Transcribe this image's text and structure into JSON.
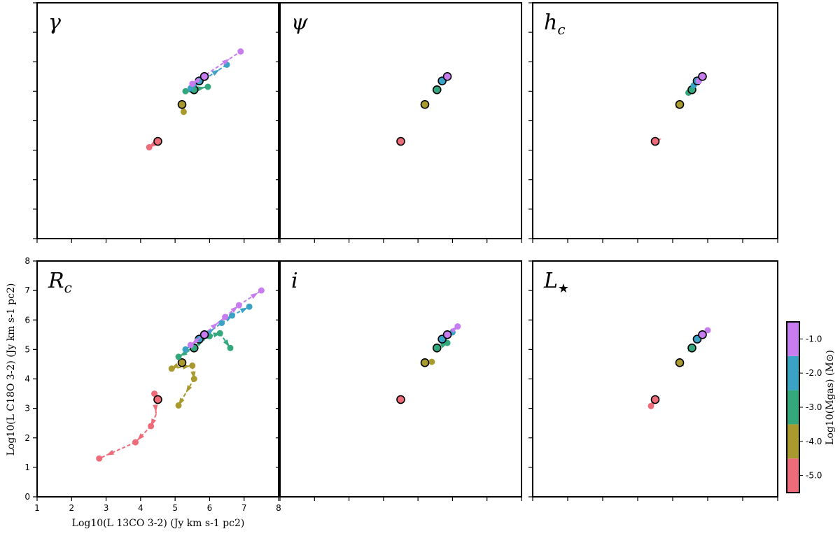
{
  "figure": {
    "shared_xlabel": "Log10(L 13CO 3-2) (Jy km s-1 pc2)",
    "shared_ylabel": "Log10(L C18O 3-2) (Jy km s-1 pc2)",
    "colorbar": {
      "label": "Log10(Mgas) (M⊙)",
      "levels": [
        -5.0,
        -4.0,
        -3.0,
        -2.0,
        -1.0
      ],
      "tick_labels": [
        "-5.0",
        "-4.0",
        "-3.0",
        "-2.0",
        "-1.0"
      ],
      "colors": [
        "#ee6b7a",
        "#a99a2e",
        "#33a87c",
        "#3aa2c5",
        "#c77cf0"
      ]
    }
  },
  "chart_data": [
    {
      "type": "scatter",
      "title": "γ",
      "xlim": [
        1,
        8
      ],
      "ylim": [
        0,
        8
      ],
      "xticks": [
        1,
        2,
        3,
        4,
        5,
        6,
        7,
        8
      ],
      "yticks": [
        0,
        1,
        2,
        3,
        4,
        5,
        6,
        7,
        8
      ],
      "series": [
        {
          "level": "-5.0",
          "base": [
            4.5,
            3.3
          ],
          "trail": [
            [
              4.25,
              3.1
            ]
          ],
          "points": [
            [
              4.25,
              3.1
            ]
          ]
        },
        {
          "level": "-4.0",
          "base": [
            5.2,
            4.55
          ],
          "trail": [
            [
              5.25,
              4.3
            ]
          ],
          "points": [
            [
              5.25,
              4.3
            ]
          ]
        },
        {
          "level": "-3.0",
          "base": [
            5.55,
            5.05
          ],
          "trail": [
            [
              5.3,
              5.0
            ],
            [
              5.95,
              5.15
            ]
          ],
          "points": [
            [
              5.3,
              5.0
            ],
            [
              5.95,
              5.15
            ]
          ]
        },
        {
          "level": "-2.0",
          "base": [
            5.7,
            5.35
          ],
          "trail": [
            [
              5.45,
              5.1
            ],
            [
              6.5,
              5.9
            ]
          ],
          "points": [
            [
              5.45,
              5.1
            ],
            [
              6.5,
              5.9
            ]
          ]
        },
        {
          "level": "-1.0",
          "base": [
            5.85,
            5.5
          ],
          "trail": [
            [
              5.5,
              5.25
            ],
            [
              6.9,
              6.35
            ]
          ],
          "points": [
            [
              5.5,
              5.25
            ],
            [
              6.9,
              6.35
            ]
          ]
        }
      ]
    },
    {
      "type": "scatter",
      "title": "ψ",
      "xlim": [
        1,
        8
      ],
      "ylim": [
        0,
        8
      ],
      "xticks": [
        1,
        2,
        3,
        4,
        5,
        6,
        7,
        8
      ],
      "yticks": [
        0,
        1,
        2,
        3,
        4,
        5,
        6,
        7,
        8
      ],
      "series": [
        {
          "level": "-5.0",
          "base": [
            4.5,
            3.3
          ],
          "trail": [],
          "points": []
        },
        {
          "level": "-4.0",
          "base": [
            5.2,
            4.55
          ],
          "trail": [],
          "points": []
        },
        {
          "level": "-3.0",
          "base": [
            5.55,
            5.05
          ],
          "trail": [],
          "points": []
        },
        {
          "level": "-2.0",
          "base": [
            5.7,
            5.35
          ],
          "trail": [],
          "points": []
        },
        {
          "level": "-1.0",
          "base": [
            5.85,
            5.5
          ],
          "trail": [],
          "points": []
        }
      ]
    },
    {
      "type": "scatter",
      "title": "hc",
      "xlim": [
        1,
        8
      ],
      "ylim": [
        0,
        8
      ],
      "xticks": [
        1,
        2,
        3,
        4,
        5,
        6,
        7,
        8
      ],
      "yticks": [
        0,
        1,
        2,
        3,
        4,
        5,
        6,
        7,
        8
      ],
      "series": [
        {
          "level": "-5.0",
          "base": [
            4.5,
            3.3
          ],
          "trail": [
            [
              4.6,
              3.35
            ]
          ],
          "points": []
        },
        {
          "level": "-4.0",
          "base": [
            5.2,
            4.55
          ],
          "trail": [
            [
              5.15,
              4.5
            ]
          ],
          "points": []
        },
        {
          "level": "-3.0",
          "base": [
            5.55,
            5.05
          ],
          "trail": [
            [
              5.45,
              4.95
            ]
          ],
          "points": [
            [
              5.45,
              4.95
            ]
          ]
        },
        {
          "level": "-2.0",
          "base": [
            5.7,
            5.35
          ],
          "trail": [
            [
              5.6,
              5.2
            ]
          ],
          "points": [
            [
              5.6,
              5.2
            ]
          ]
        },
        {
          "level": "-1.0",
          "base": [
            5.85,
            5.5
          ],
          "trail": [
            [
              5.75,
              5.35
            ]
          ],
          "points": [
            [
              5.75,
              5.35
            ]
          ]
        }
      ]
    },
    {
      "type": "scatter",
      "title": "Rc",
      "xlim": [
        1,
        8
      ],
      "ylim": [
        0,
        8
      ],
      "xticks": [
        1,
        2,
        3,
        4,
        5,
        6,
        7,
        8
      ],
      "yticks": [
        0,
        1,
        2,
        3,
        4,
        5,
        6,
        7,
        8
      ],
      "xtick_labels": [
        "1",
        "2",
        "3",
        "4",
        "5",
        "6",
        "7",
        "8"
      ],
      "ytick_labels": [
        "0",
        "1",
        "2",
        "3",
        "4",
        "5",
        "6",
        "7",
        "8"
      ],
      "series": [
        {
          "level": "-5.0",
          "base": [
            4.5,
            3.3
          ],
          "trail": [
            [
              4.4,
              3.5
            ],
            [
              4.45,
              2.8
            ],
            [
              4.3,
              2.4
            ],
            [
              3.85,
              1.85
            ],
            [
              2.8,
              1.3
            ]
          ],
          "points": [
            [
              4.4,
              3.5
            ],
            [
              4.3,
              2.4
            ],
            [
              3.85,
              1.85
            ],
            [
              2.8,
              1.3
            ]
          ]
        },
        {
          "level": "-4.0",
          "base": [
            5.2,
            4.55
          ],
          "trail": [
            [
              4.9,
              4.35
            ],
            [
              5.5,
              4.45
            ],
            [
              5.55,
              4.0
            ],
            [
              5.3,
              3.5
            ],
            [
              5.1,
              3.1
            ]
          ],
          "points": [
            [
              4.9,
              4.35
            ],
            [
              5.5,
              4.45
            ],
            [
              5.55,
              4.0
            ],
            [
              5.1,
              3.1
            ]
          ]
        },
        {
          "level": "-3.0",
          "base": [
            5.55,
            5.05
          ],
          "trail": [
            [
              5.1,
              4.75
            ],
            [
              6.0,
              5.45
            ],
            [
              6.3,
              5.55
            ],
            [
              6.6,
              5.05
            ]
          ],
          "points": [
            [
              5.1,
              4.75
            ],
            [
              6.0,
              5.45
            ],
            [
              6.3,
              5.55
            ],
            [
              6.6,
              5.05
            ]
          ]
        },
        {
          "level": "-2.0",
          "base": [
            5.7,
            5.35
          ],
          "trail": [
            [
              5.3,
              5.0
            ],
            [
              6.35,
              5.9
            ],
            [
              6.65,
              6.15
            ],
            [
              7.15,
              6.45
            ]
          ],
          "points": [
            [
              5.3,
              5.0
            ],
            [
              6.35,
              5.9
            ],
            [
              6.65,
              6.15
            ],
            [
              7.15,
              6.45
            ]
          ]
        },
        {
          "level": "-1.0",
          "base": [
            5.85,
            5.5
          ],
          "trail": [
            [
              5.45,
              5.15
            ],
            [
              6.45,
              6.1
            ],
            [
              6.85,
              6.5
            ],
            [
              7.5,
              7.0
            ]
          ],
          "points": [
            [
              5.45,
              5.15
            ],
            [
              6.45,
              6.1
            ],
            [
              6.85,
              6.5
            ],
            [
              7.5,
              7.0
            ]
          ]
        }
      ]
    },
    {
      "type": "scatter",
      "title": "i",
      "xlim": [
        1,
        8
      ],
      "ylim": [
        0,
        8
      ],
      "xticks": [
        1,
        2,
        3,
        4,
        5,
        6,
        7,
        8
      ],
      "yticks": [
        0,
        1,
        2,
        3,
        4,
        5,
        6,
        7,
        8
      ],
      "series": [
        {
          "level": "-5.0",
          "base": [
            4.5,
            3.3
          ],
          "trail": [],
          "points": []
        },
        {
          "level": "-4.0",
          "base": [
            5.2,
            4.55
          ],
          "trail": [
            [
              5.4,
              4.58
            ]
          ],
          "points": [
            [
              5.4,
              4.58
            ]
          ]
        },
        {
          "level": "-3.0",
          "base": [
            5.55,
            5.05
          ],
          "trail": [
            [
              5.85,
              5.22
            ]
          ],
          "points": [
            [
              5.85,
              5.22
            ]
          ]
        },
        {
          "level": "-2.0",
          "base": [
            5.7,
            5.35
          ],
          "trail": [
            [
              6.0,
              5.58
            ]
          ],
          "points": [
            [
              6.0,
              5.58
            ]
          ]
        },
        {
          "level": "-1.0",
          "base": [
            5.85,
            5.5
          ],
          "trail": [
            [
              6.15,
              5.78
            ]
          ],
          "points": [
            [
              6.15,
              5.78
            ]
          ]
        }
      ]
    },
    {
      "type": "scatter",
      "title": "L★",
      "xlim": [
        1,
        8
      ],
      "ylim": [
        0,
        8
      ],
      "xticks": [
        1,
        2,
        3,
        4,
        5,
        6,
        7,
        8
      ],
      "yticks": [
        0,
        1,
        2,
        3,
        4,
        5,
        6,
        7,
        8
      ],
      "series": [
        {
          "level": "-5.0",
          "base": [
            4.5,
            3.3
          ],
          "trail": [
            [
              4.38,
              3.08
            ]
          ],
          "points": [
            [
              4.38,
              3.08
            ]
          ]
        },
        {
          "level": "-4.0",
          "base": [
            5.2,
            4.55
          ],
          "trail": [
            [
              5.25,
              4.5
            ]
          ],
          "points": []
        },
        {
          "level": "-3.0",
          "base": [
            5.55,
            5.05
          ],
          "trail": [
            [
              5.5,
              5.0
            ]
          ],
          "points": []
        },
        {
          "level": "-2.0",
          "base": [
            5.7,
            5.35
          ],
          "trail": [
            [
              5.75,
              5.4
            ]
          ],
          "points": []
        },
        {
          "level": "-1.0",
          "base": [
            5.85,
            5.5
          ],
          "trail": [
            [
              6.0,
              5.65
            ]
          ],
          "points": [
            [
              6.0,
              5.65
            ]
          ]
        }
      ]
    }
  ]
}
